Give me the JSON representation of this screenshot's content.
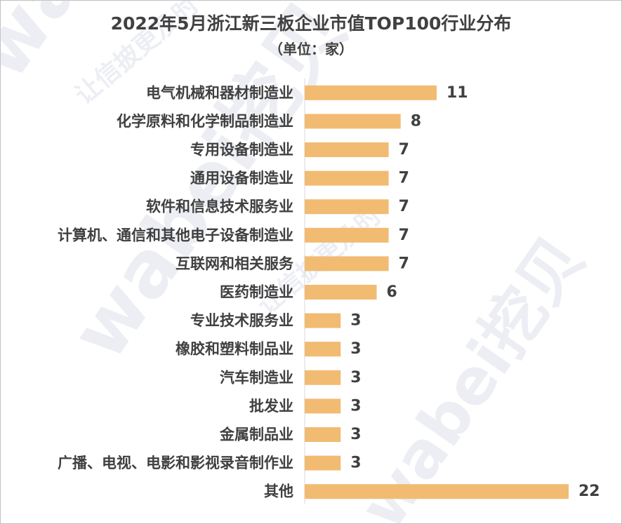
{
  "chart_data": {
    "type": "bar",
    "orientation": "horizontal",
    "title": "2022年5月浙江新三板企业市值TOP100行业分布",
    "subtitle": "（单位：家）",
    "categories": [
      "电气机械和器材制造业",
      "化学原料和化学制品制造业",
      "专用设备制造业",
      "通用设备制造业",
      "软件和信息技术服务业",
      "计算机、通信和其他电子设备制造业",
      "互联网和相关服务",
      "医药制造业",
      "专业技术服务业",
      "橡胶和塑料制品业",
      "汽车制造业",
      "批发业",
      "金属制品业",
      "广播、电视、电影和影视录音制作业",
      "其他"
    ],
    "values": [
      11,
      8,
      7,
      7,
      7,
      7,
      7,
      6,
      3,
      3,
      3,
      3,
      3,
      3,
      22
    ],
    "xlim": [
      0,
      22
    ],
    "grid": false,
    "legend": "none",
    "bar_color": "#f2bb72"
  },
  "watermark": {
    "texts": [
      "wabei挖贝",
      "让信披更及时"
    ],
    "color": "#c8cde0"
  }
}
